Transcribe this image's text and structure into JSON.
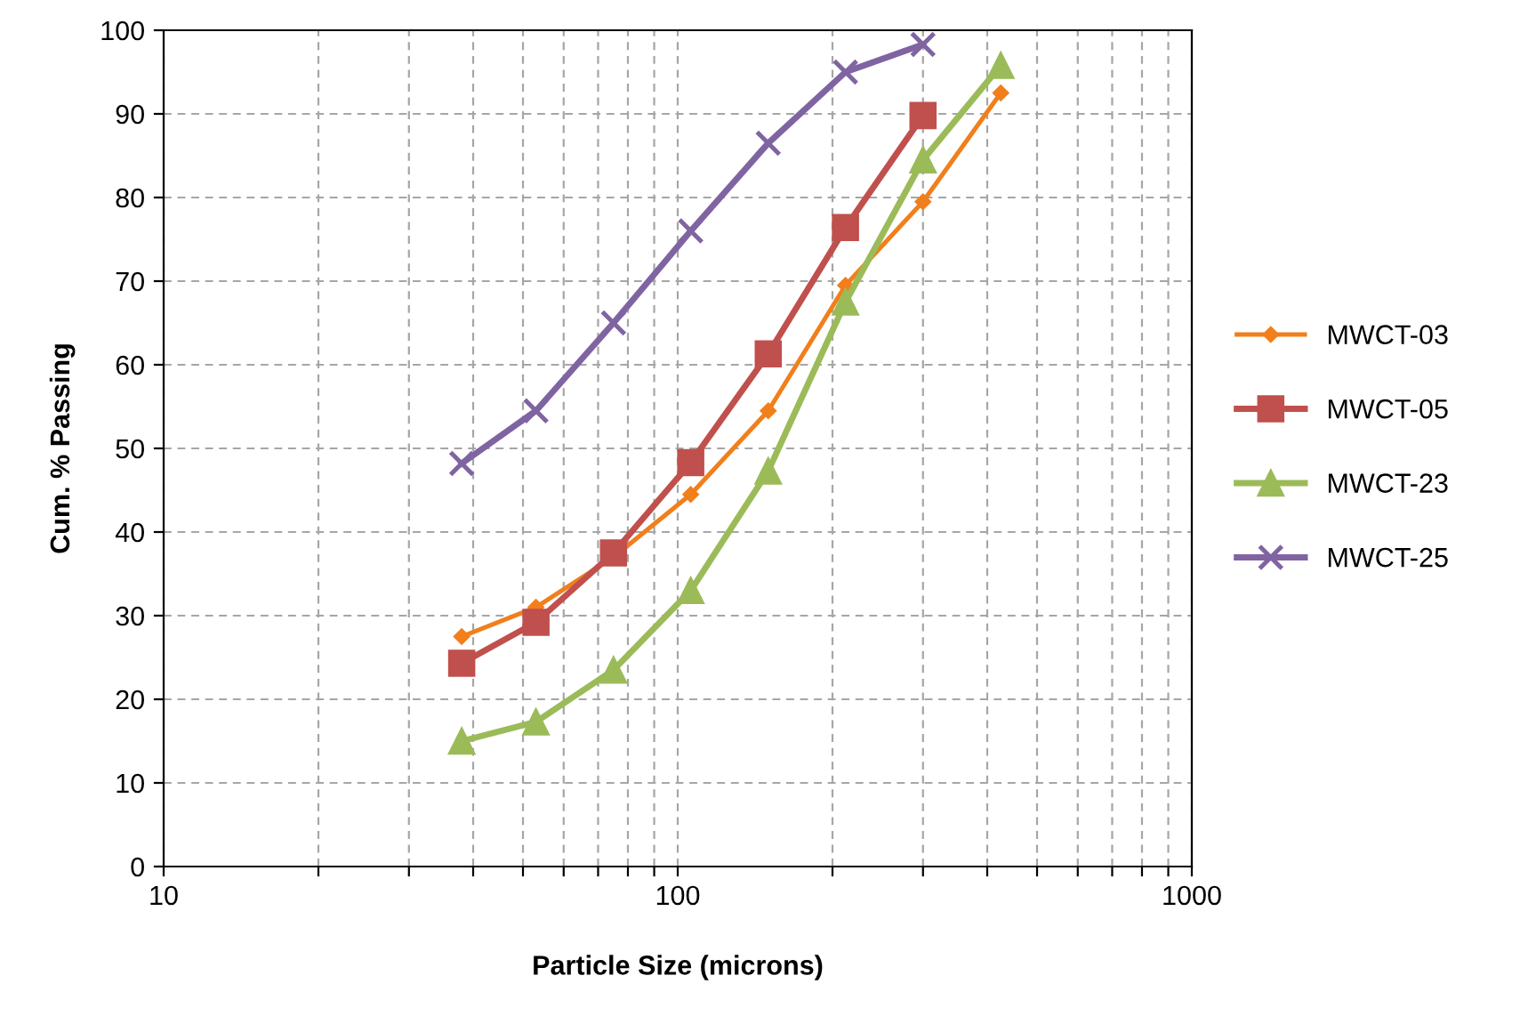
{
  "chart_data": {
    "type": "line",
    "xlabel": "Particle Size (microns)",
    "ylabel": "Cum. % Passing",
    "log": "x",
    "xlim": [
      10,
      1000
    ],
    "ylim": [
      0,
      100
    ],
    "xticks": [
      10,
      {
        "value": 20,
        "label": null
      },
      {
        "value": 30,
        "label": null
      },
      {
        "value": 40,
        "label": null
      },
      {
        "value": 50,
        "label": null
      },
      {
        "value": 60,
        "label": null
      },
      {
        "value": 70,
        "label": null
      },
      {
        "value": 80,
        "label": null
      },
      {
        "value": 90,
        "label": null
      },
      100,
      {
        "value": 200,
        "label": null
      },
      {
        "value": 300,
        "label": null
      },
      {
        "value": 400,
        "label": null
      },
      {
        "value": 500,
        "label": null
      },
      {
        "value": 600,
        "label": null
      },
      {
        "value": 700,
        "label": null
      },
      {
        "value": 800,
        "label": null
      },
      {
        "value": 900,
        "label": null
      },
      1000
    ],
    "yticks": [
      0,
      10,
      20,
      30,
      40,
      50,
      60,
      70,
      80,
      90,
      100
    ],
    "grid": true,
    "legend": "right",
    "line_style": "solid",
    "series": [
      {
        "name": "MWCT-03",
        "color": "#f07f1c",
        "marker": "diamond",
        "x": [
          38,
          53,
          75,
          106,
          150,
          212,
          300,
          425
        ],
        "values": [
          27.5,
          31,
          37,
          44.5,
          54.5,
          69.5,
          79.5,
          92.5
        ]
      },
      {
        "name": "MWCT-05",
        "color": "#c0504d",
        "marker": "square",
        "x": [
          38,
          53,
          75,
          106,
          150,
          212,
          300
        ],
        "values": [
          24.3,
          29.2,
          37.5,
          48.3,
          61.3,
          76.4,
          89.8
        ]
      },
      {
        "name": "MWCT-23",
        "color": "#9bbb59",
        "marker": "triangle",
        "x": [
          38,
          53,
          75,
          106,
          150,
          212,
          300,
          425
        ],
        "values": [
          15,
          17.3,
          23.5,
          33,
          47.3,
          67.5,
          84.5,
          95.8
        ]
      },
      {
        "name": "MWCT-25",
        "color": "#8064a2",
        "marker": "cross",
        "x": [
          38,
          53,
          75,
          106,
          150,
          212,
          300
        ],
        "values": [
          48.2,
          54.5,
          65,
          76,
          86.5,
          95,
          98.3
        ]
      }
    ]
  }
}
